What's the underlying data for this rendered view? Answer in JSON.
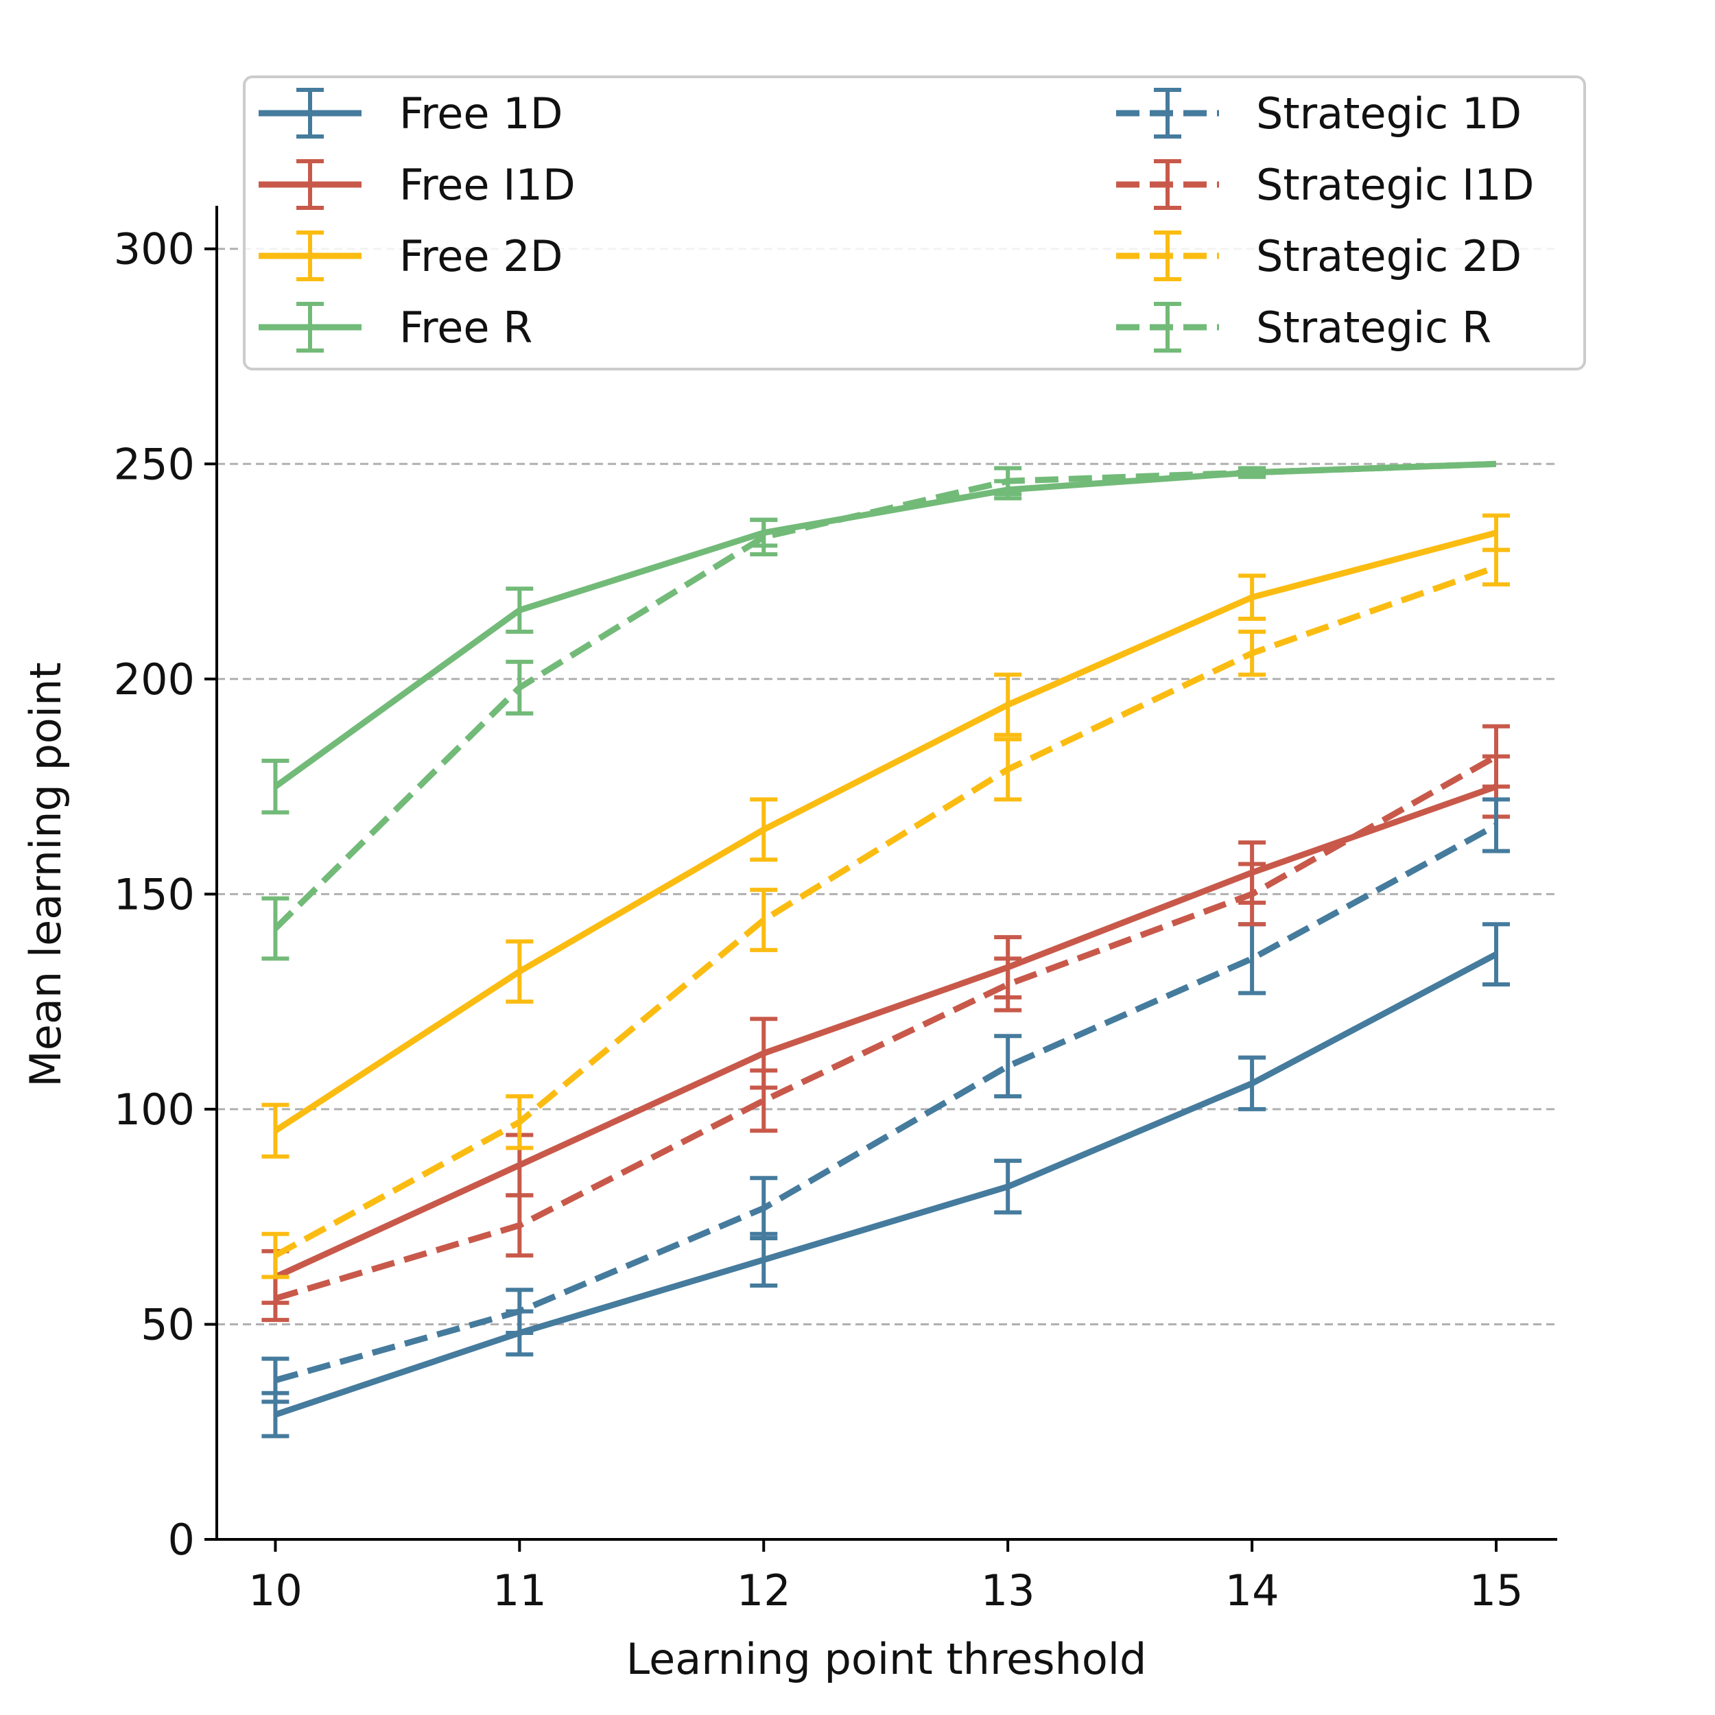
{
  "chart_data": {
    "type": "line",
    "xlabel": "Learning point threshold",
    "ylabel": "Mean learning point",
    "x": [
      10,
      11,
      12,
      13,
      14,
      15
    ],
    "xticks": [
      "10",
      "11",
      "12",
      "13",
      "14",
      "15"
    ],
    "yticks": [
      "0",
      "50",
      "100",
      "150",
      "200",
      "250",
      "300"
    ],
    "ylim": [
      0,
      310
    ],
    "xlim": [
      9.76,
      15.25
    ],
    "grid": "horizontal dashed at y ticks",
    "legend_placement": "top, two columns",
    "series": [
      {
        "name": "Free 1D",
        "color": "#457b9d",
        "style": "solid",
        "values": [
          29,
          48,
          65,
          82,
          106,
          136
        ],
        "err": [
          5,
          5,
          6,
          6,
          6,
          7
        ]
      },
      {
        "name": "Free I1D",
        "color": "#c8594a",
        "style": "solid",
        "values": [
          61,
          87,
          113,
          133,
          155,
          175
        ],
        "err": [
          6,
          7,
          8,
          7,
          7,
          7
        ]
      },
      {
        "name": "Free 2D",
        "color": "#fbbc12",
        "style": "solid",
        "values": [
          95,
          132,
          165,
          194,
          219,
          234
        ],
        "err": [
          6,
          7,
          7,
          7,
          5,
          4
        ]
      },
      {
        "name": "Free R",
        "color": "#72ba78",
        "style": "solid",
        "values": [
          175,
          216,
          234,
          244,
          248,
          250
        ],
        "err": [
          6,
          5,
          3,
          2,
          1,
          0
        ]
      },
      {
        "name": "Strategic 1D",
        "color": "#457b9d",
        "style": "dashed",
        "values": [
          37,
          53,
          77,
          110,
          135,
          166
        ],
        "err": [
          5,
          5,
          7,
          7,
          8,
          6
        ]
      },
      {
        "name": "Strategic I1D",
        "color": "#c8594a",
        "style": "dashed",
        "values": [
          56,
          73,
          102,
          129,
          150,
          182
        ],
        "err": [
          5,
          7,
          7,
          6,
          7,
          7
        ]
      },
      {
        "name": "Strategic 2D",
        "color": "#fbbc12",
        "style": "dashed",
        "values": [
          66,
          97,
          144,
          179,
          206,
          226
        ],
        "err": [
          5,
          6,
          7,
          7,
          5,
          4
        ]
      },
      {
        "name": "Strategic R",
        "color": "#72ba78",
        "style": "dashed",
        "values": [
          142,
          198,
          233,
          246,
          248,
          250
        ],
        "err": [
          7,
          6,
          4,
          3,
          1,
          0
        ]
      }
    ]
  }
}
